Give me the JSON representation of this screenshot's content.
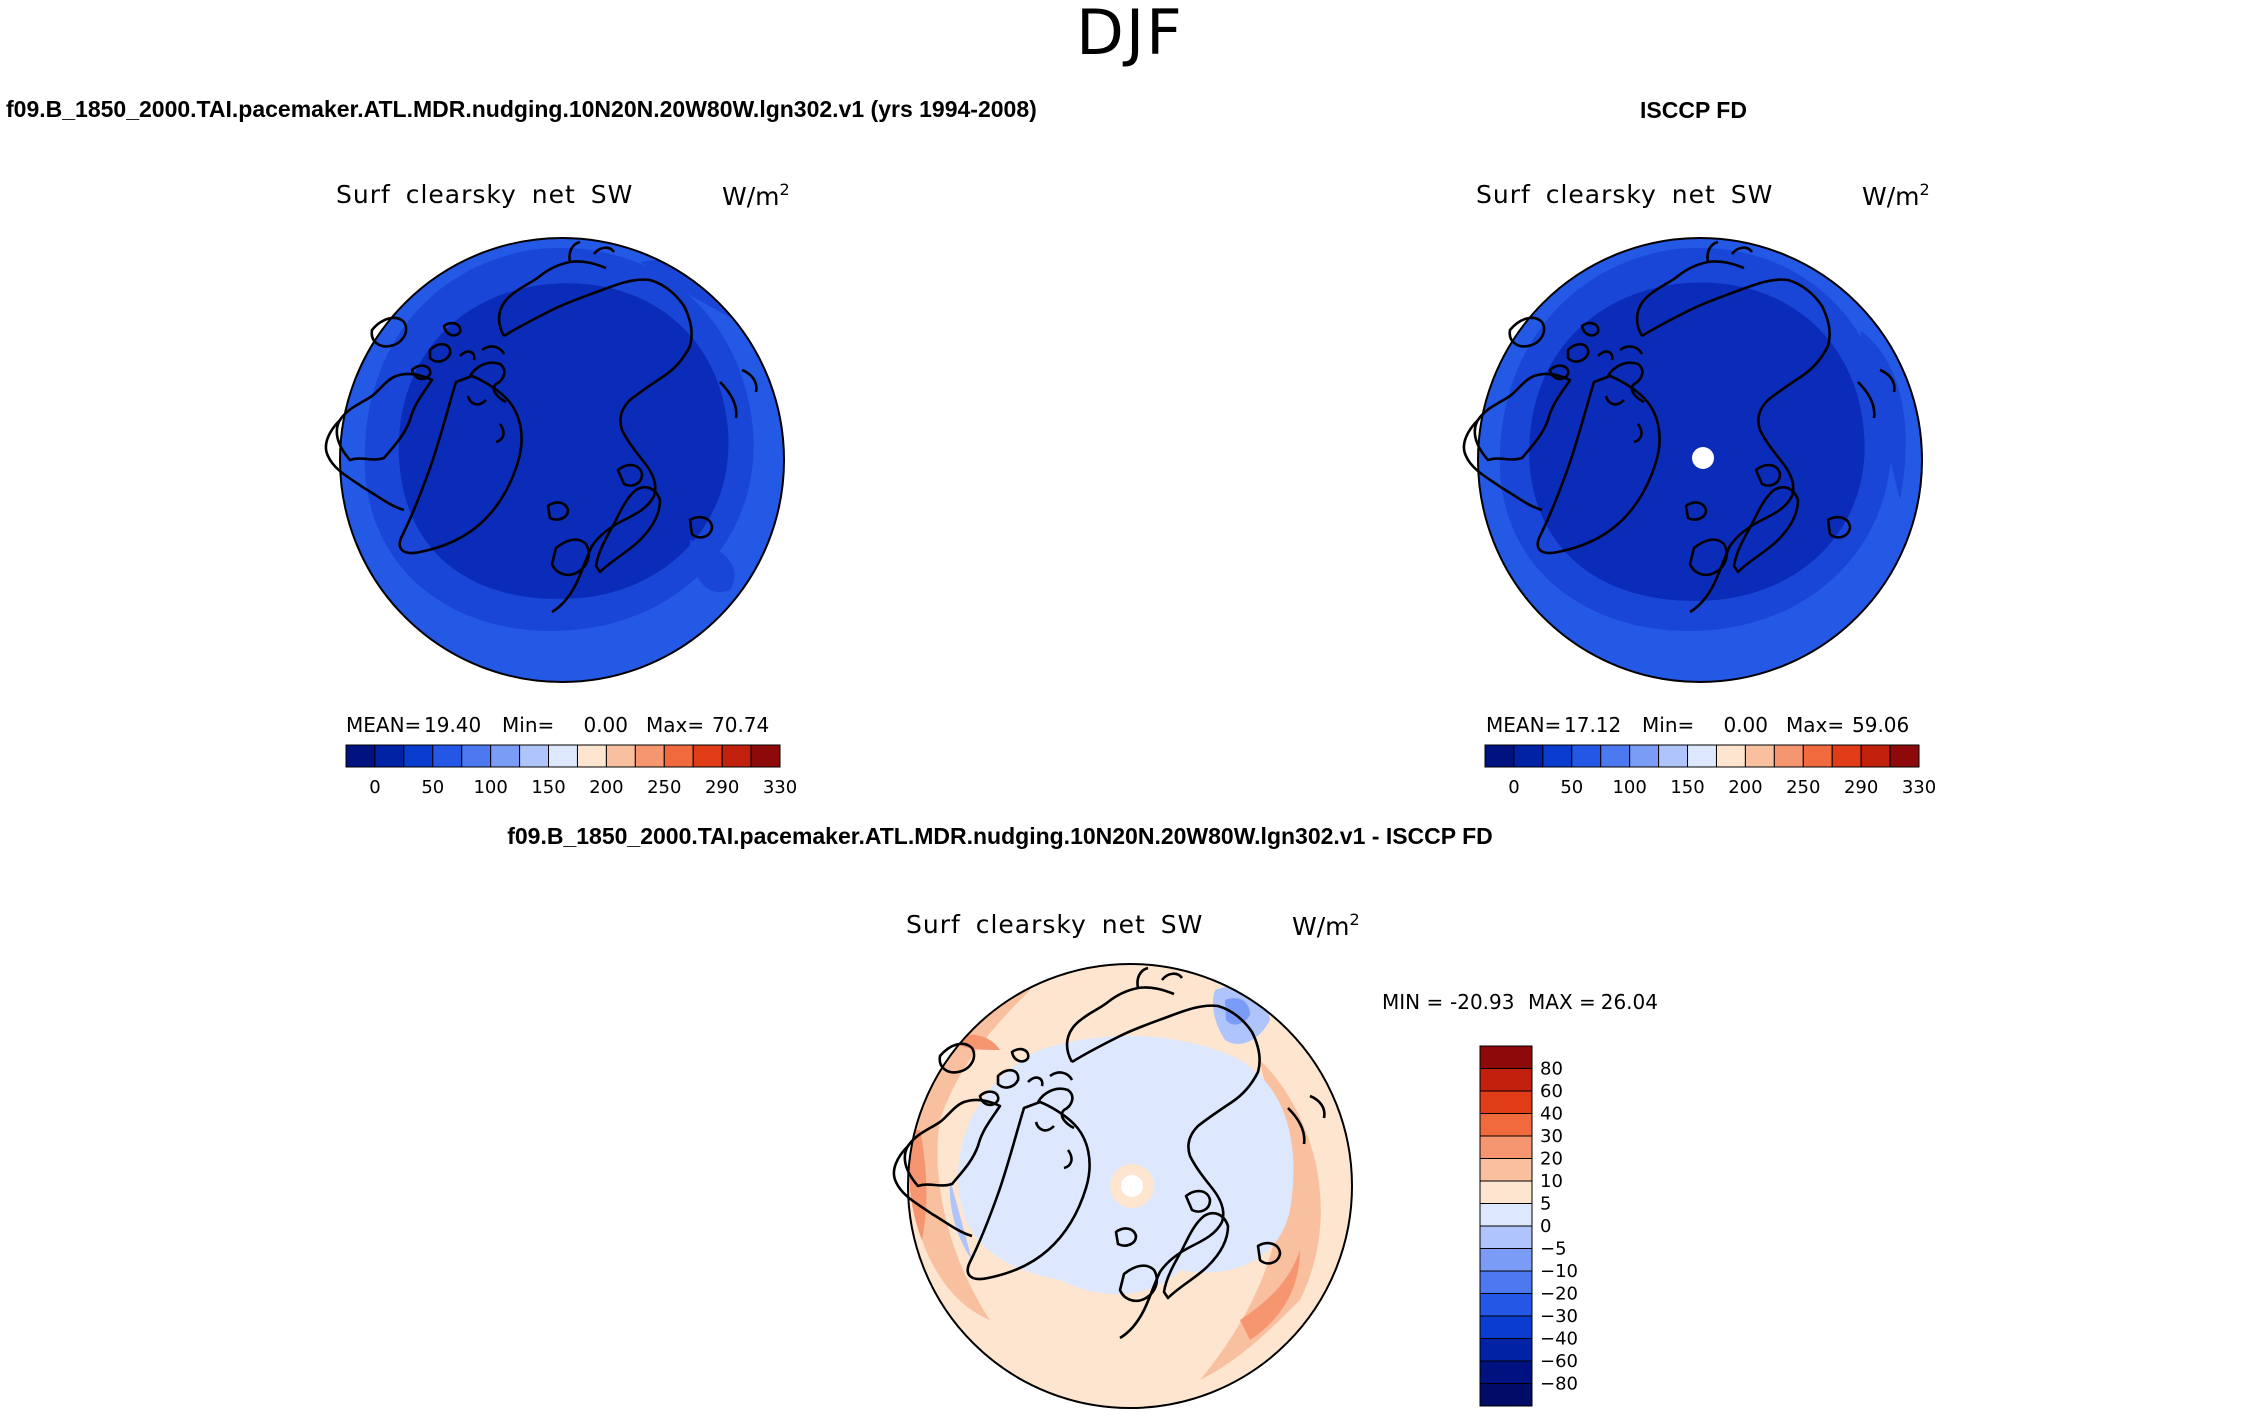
{
  "header": {
    "season": "DJF",
    "case_label": "f09.B_1850_2000.TAI.pacemaker.ATL.MDR.nudging.10N20N.20W80W.lgn302.v1 (yrs 1994-2008)",
    "obs_label": "ISCCP FD",
    "diff_label": "f09.B_1850_2000.TAI.pacemaker.ATL.MDR.nudging.10N20N.20W80W.lgn302.v1 - ISCCP FD"
  },
  "colors": {
    "abs_scale": [
      "#00127f",
      "#0022a5",
      "#0a3ccf",
      "#2457e6",
      "#4c78f0",
      "#7b9cf6",
      "#aec4fb",
      "#dde8ff",
      "#fde5cf",
      "#f9c0a0",
      "#f69670",
      "#f06a3e",
      "#e03c18",
      "#c0200c",
      "#8e0a0a"
    ],
    "map_field": {
      "deep": "#0a2cb8",
      "mid": "#1a46d8",
      "outer": "#2459e6",
      "lake": "#5a7ff0"
    },
    "diff_field": {
      "pos_light": "#fde5cf",
      "pos_mid": "#f9c0a0",
      "pos_strong": "#f69670",
      "neg_light": "#dde8ff",
      "neg_mid": "#aec4fb",
      "neg_strong": "#7b9cf6"
    },
    "coast": "#000000",
    "pole_hole": "#ffffff"
  },
  "chart_data": [
    {
      "type": "heatmap",
      "panel": "model",
      "title": "Surf clearsky net SW",
      "units": "W/m",
      "units_sup": "2",
      "projection": "north-polar-stereographic",
      "stats": {
        "mean_label": "MEAN=",
        "mean": "19.40",
        "min_label": "Min=",
        "min": "0.00",
        "max_label": "Max=",
        "max": "70.74"
      },
      "colorbar": {
        "orientation": "horizontal",
        "tick_labels": [
          "0",
          "50",
          "100",
          "150",
          "200",
          "250",
          "290",
          "330"
        ]
      }
    },
    {
      "type": "heatmap",
      "panel": "obs",
      "title": "Surf clearsky net SW",
      "units": "W/m",
      "units_sup": "2",
      "projection": "north-polar-stereographic",
      "stats": {
        "mean_label": "MEAN=",
        "mean": "17.12",
        "min_label": "Min=",
        "min": "0.00",
        "max_label": "Max=",
        "max": "59.06"
      },
      "colorbar": {
        "orientation": "horizontal",
        "tick_labels": [
          "0",
          "50",
          "100",
          "150",
          "200",
          "250",
          "290",
          "330"
        ]
      }
    },
    {
      "type": "heatmap",
      "panel": "difference",
      "title": "Surf clearsky net SW",
      "units": "W/m",
      "units_sup": "2",
      "projection": "north-polar-stereographic",
      "stats": {
        "min_label": "MIN =",
        "min": "-20.93",
        "max_label": "MAX =",
        "max": "26.04"
      },
      "colorbar": {
        "orientation": "vertical",
        "levels": [
          80,
          60,
          40,
          30,
          20,
          10,
          5,
          0,
          -5,
          -10,
          -20,
          -30,
          -40,
          -60,
          -80
        ],
        "tick_labels": [
          "80",
          "60",
          "40",
          "30",
          "20",
          "10",
          "5",
          "0",
          "−5",
          "−10",
          "−20",
          "−30",
          "−40",
          "−60",
          "−80"
        ],
        "colors": [
          "#8e0a0a",
          "#c0200c",
          "#e03c18",
          "#f06a3e",
          "#f69670",
          "#f9c0a0",
          "#fde5cf",
          "#dde8ff",
          "#aec4fb",
          "#7b9cf6",
          "#4c78f0",
          "#2457e6",
          "#0a3ccf",
          "#0022a5",
          "#00127f",
          "#000c66"
        ]
      }
    }
  ]
}
